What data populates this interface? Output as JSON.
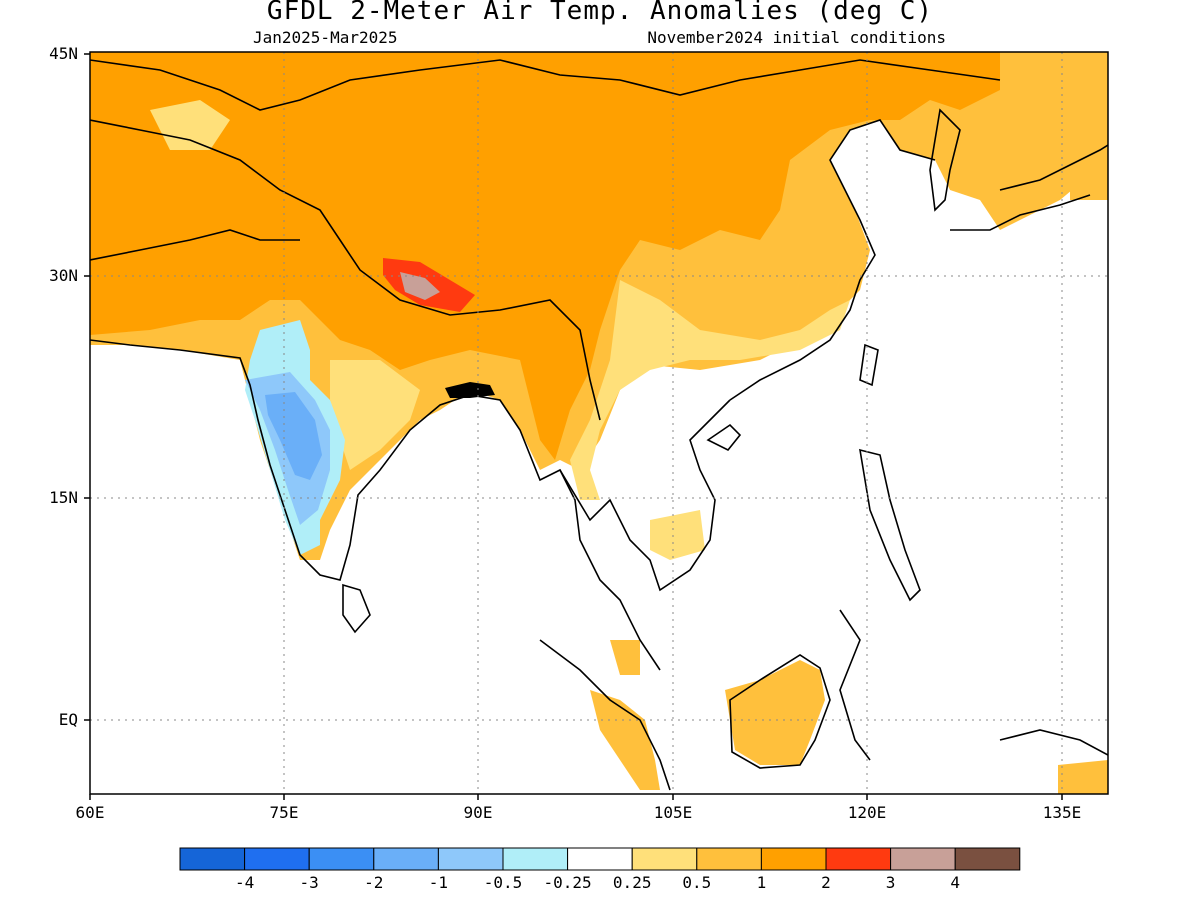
{
  "title": "GFDL 2-Meter Air Temp. Anomalies (deg C)",
  "subtitle_left": "Jan2025-Mar2025",
  "subtitle_right": "November2024 initial conditions",
  "lat_labels": [
    "45N",
    "30N",
    "15N",
    "EQ"
  ],
  "lon_labels": [
    "60E",
    "75E",
    "90E",
    "105E",
    "120E",
    "135E"
  ],
  "colorbar": {
    "colors": [
      "#1565d8",
      "#1f6ff0",
      "#3b8ff4",
      "#6aaff8",
      "#8ec8fa",
      "#b0eef8",
      "#ffffff",
      "#ffe07a",
      "#ffc03c",
      "#ffa000",
      "#ff3a10",
      "#c8a098",
      "#7a5040"
    ],
    "labels": [
      "-4",
      "-3",
      "-2",
      "-1",
      "-0.5",
      "-0.25",
      "0.25",
      "0.5",
      "1",
      "2",
      "3",
      "4"
    ]
  },
  "colors": {
    "warm_light": "#ffe07a",
    "warm": "#ffc03c",
    "warm_strong": "#ffa000",
    "hot": "#ff3a10",
    "very_hot": "#c8a098",
    "cool_light": "#b0eef8",
    "cool": "#8ec8fa",
    "cool_strong": "#6aaff8"
  }
}
